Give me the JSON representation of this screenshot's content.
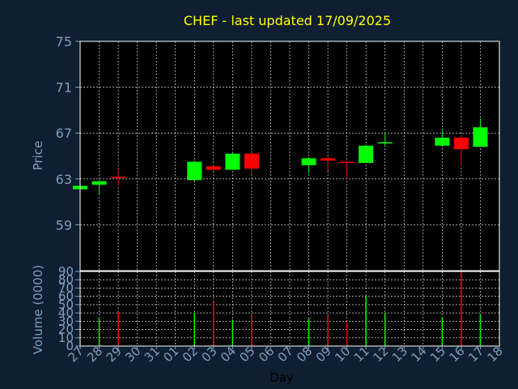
{
  "chart_data": [
    {
      "type": "candlestick",
      "title": "CHEF - last updated 17/09/2025",
      "ylabel": "Price",
      "xlabel": "Day",
      "ylim": [
        55,
        75
      ],
      "yticks": [
        75,
        71,
        67,
        63,
        59
      ],
      "grid": true,
      "x_ticks": [
        "27",
        "28",
        "29",
        "30",
        "31",
        "01",
        "02",
        "03",
        "04",
        "05",
        "06",
        "07",
        "08",
        "09",
        "10",
        "11",
        "12",
        "13",
        "14",
        "15",
        "16",
        "17",
        "18"
      ],
      "candles": [
        {
          "day": "27",
          "open": 62.1,
          "high": 62.4,
          "low": 62.1,
          "close": 62.4
        },
        {
          "day": "28",
          "open": 62.5,
          "high": 62.9,
          "low": 61.7,
          "close": 62.8
        },
        {
          "day": "29",
          "open": 63.2,
          "high": 63.8,
          "low": 62.4,
          "close": 63.1
        },
        {
          "day": "02",
          "open": 62.9,
          "high": 64.6,
          "low": 62.8,
          "close": 64.5
        },
        {
          "day": "03",
          "open": 64.1,
          "high": 64.2,
          "low": 63.7,
          "close": 63.8
        },
        {
          "day": "04",
          "open": 63.8,
          "high": 65.3,
          "low": 63.8,
          "close": 65.2
        },
        {
          "day": "05",
          "open": 65.2,
          "high": 65.3,
          "low": 63.4,
          "close": 63.9
        },
        {
          "day": "08",
          "open": 64.2,
          "high": 64.9,
          "low": 63.5,
          "close": 64.8
        },
        {
          "day": "09",
          "open": 64.8,
          "high": 65.0,
          "low": 63.7,
          "close": 64.6
        },
        {
          "day": "10",
          "open": 64.5,
          "high": 64.5,
          "low": 63.0,
          "close": 64.4
        },
        {
          "day": "11",
          "open": 64.4,
          "high": 66.0,
          "low": 64.4,
          "close": 65.9
        },
        {
          "day": "12",
          "open": 66.2,
          "high": 67.0,
          "low": 65.9,
          "close": 66.2
        },
        {
          "day": "15",
          "open": 65.9,
          "high": 67.2,
          "low": 65.9,
          "close": 66.6
        },
        {
          "day": "16",
          "open": 66.6,
          "high": 66.8,
          "low": 64.1,
          "close": 65.6
        },
        {
          "day": "17",
          "open": 65.8,
          "high": 68.3,
          "low": 65.8,
          "close": 67.5
        }
      ],
      "colors": {
        "up": "#00ff00",
        "down": "#ff0000",
        "background": "#000000",
        "page": "#0f1e30",
        "title": "#ffff00",
        "ticks": "#7f9fbf"
      }
    },
    {
      "type": "bar",
      "ylabel": "Volume (0000)",
      "ylim": [
        0,
        90
      ],
      "yticks": [
        0,
        10,
        20,
        30,
        40,
        50,
        60,
        70,
        80,
        90
      ],
      "bars": [
        {
          "day": "28",
          "value": 33,
          "color": "#00ff00"
        },
        {
          "day": "29",
          "value": 42,
          "color": "#ff0000"
        },
        {
          "day": "02",
          "value": 40,
          "color": "#00ff00"
        },
        {
          "day": "03",
          "value": 53,
          "color": "#ff0000"
        },
        {
          "day": "04",
          "value": 32,
          "color": "#00ff00"
        },
        {
          "day": "05",
          "value": 38,
          "color": "#ff0000"
        },
        {
          "day": "08",
          "value": 33,
          "color": "#00ff00"
        },
        {
          "day": "09",
          "value": 37,
          "color": "#ff0000"
        },
        {
          "day": "10",
          "value": 28,
          "color": "#ff0000"
        },
        {
          "day": "11",
          "value": 61,
          "color": "#00ff00"
        },
        {
          "day": "12",
          "value": 40,
          "color": "#00ff00"
        },
        {
          "day": "15",
          "value": 35,
          "color": "#00ff00"
        },
        {
          "day": "16",
          "value": 90,
          "color": "#ff0000"
        },
        {
          "day": "17",
          "value": 38,
          "color": "#00ff00"
        }
      ]
    }
  ]
}
